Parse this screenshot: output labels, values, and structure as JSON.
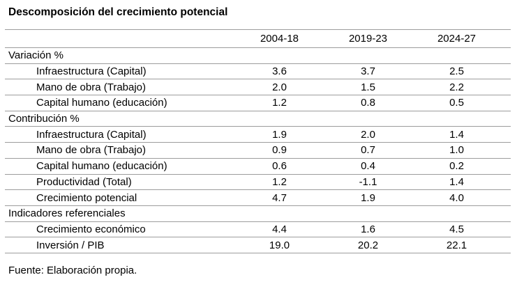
{
  "title": "Descomposición del crecimiento potencial",
  "source_note": "Fuente: Elaboración propia.",
  "table": {
    "columns": [
      "",
      "2004-18",
      "2019-23",
      "2024-27"
    ],
    "rows": [
      {
        "type": "section",
        "label": "Variación %",
        "values": [
          "",
          "",
          ""
        ]
      },
      {
        "type": "item",
        "label": "Infraestructura (Capital)",
        "values": [
          "3.6",
          "3.7",
          "2.5"
        ]
      },
      {
        "type": "item",
        "label": "Mano de obra (Trabajo)",
        "values": [
          "2.0",
          "1.5",
          "2.2"
        ]
      },
      {
        "type": "item",
        "label": "Capital humano (educación)",
        "values": [
          "1.2",
          "0.8",
          "0.5"
        ]
      },
      {
        "type": "section",
        "label": "Contribución %",
        "values": [
          "",
          "",
          ""
        ]
      },
      {
        "type": "item",
        "label": "Infraestructura (Capital)",
        "values": [
          "1.9",
          "2.0",
          "1.4"
        ]
      },
      {
        "type": "item",
        "label": "Mano de obra (Trabajo)",
        "values": [
          "0.9",
          "0.7",
          "1.0"
        ]
      },
      {
        "type": "item",
        "label": "Capital humano (educación)",
        "values": [
          "0.6",
          "0.4",
          "0.2"
        ]
      },
      {
        "type": "item",
        "label": "Productividad (Total)",
        "values": [
          "1.2",
          "-1.1",
          "1.4"
        ]
      },
      {
        "type": "item",
        "label": "Crecimiento potencial",
        "values": [
          "4.7",
          "1.9",
          "4.0"
        ]
      },
      {
        "type": "section",
        "label": "Indicadores referenciales",
        "values": [
          "",
          "",
          ""
        ]
      },
      {
        "type": "item",
        "label": "Crecimiento económico",
        "values": [
          "4.4",
          "1.6",
          "4.5"
        ]
      },
      {
        "type": "item",
        "label": "Inversión / PIB",
        "values": [
          "19.0",
          "20.2",
          "22.1"
        ]
      }
    ]
  },
  "chart_data": {
    "type": "table",
    "title": "Descomposición del crecimiento potencial",
    "columns": [
      "2004-18",
      "2019-23",
      "2024-27"
    ],
    "sections": [
      {
        "name": "Variación %",
        "rows": [
          {
            "label": "Infraestructura (Capital)",
            "values": [
              3.6,
              3.7,
              2.5
            ]
          },
          {
            "label": "Mano de obra (Trabajo)",
            "values": [
              2.0,
              1.5,
              2.2
            ]
          },
          {
            "label": "Capital humano (educación)",
            "values": [
              1.2,
              0.8,
              0.5
            ]
          }
        ]
      },
      {
        "name": "Contribución %",
        "rows": [
          {
            "label": "Infraestructura (Capital)",
            "values": [
              1.9,
              2.0,
              1.4
            ]
          },
          {
            "label": "Mano de obra (Trabajo)",
            "values": [
              0.9,
              0.7,
              1.0
            ]
          },
          {
            "label": "Capital humano (educación)",
            "values": [
              0.6,
              0.4,
              0.2
            ]
          },
          {
            "label": "Productividad (Total)",
            "values": [
              1.2,
              -1.1,
              1.4
            ]
          },
          {
            "label": "Crecimiento potencial",
            "values": [
              4.7,
              1.9,
              4.0
            ]
          }
        ]
      },
      {
        "name": "Indicadores referenciales",
        "rows": [
          {
            "label": "Crecimiento económico",
            "values": [
              4.4,
              1.6,
              4.5
            ]
          },
          {
            "label": "Inversión / PIB",
            "values": [
              19.0,
              20.2,
              22.1
            ]
          }
        ]
      }
    ],
    "source": "Fuente: Elaboración propia."
  },
  "colors": {
    "background": "#ffffff",
    "text": "#000000",
    "rule": "#9c9c9c"
  }
}
